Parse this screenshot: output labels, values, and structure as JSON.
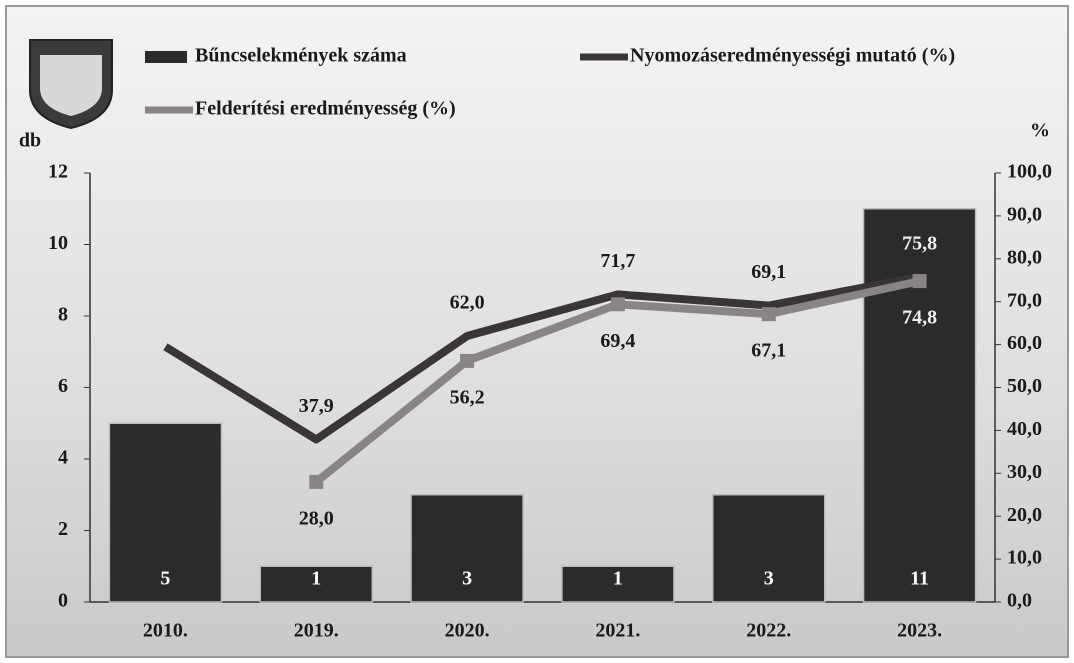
{
  "chart_data": {
    "type": "combo",
    "ylabel": "db",
    "y2label": "%",
    "categories": [
      "2010.",
      "2019.",
      "2020.",
      "2021.",
      "2022.",
      "2023."
    ],
    "series": [
      {
        "name": "Bűncselekmények száma",
        "type": "bar",
        "color": "#2b2b2b",
        "values": [
          5,
          1,
          3,
          1,
          3,
          11
        ]
      },
      {
        "name": "Nyomozáseredményességi mutató (%)",
        "type": "line",
        "axis": "y2",
        "color": "#3a3636",
        "values": [
          59.5,
          37.9,
          62.0,
          71.7,
          69.1,
          75.8
        ],
        "value_labels": [
          null,
          "37,9",
          "62,0",
          "71,7",
          "69,1",
          "75,8"
        ]
      },
      {
        "name": "Felderítési eredményesség (%)",
        "type": "line",
        "axis": "y2",
        "color": "#8a8585",
        "values": [
          null,
          28.0,
          56.2,
          69.4,
          67.1,
          74.8
        ],
        "value_labels": [
          null,
          "28,0",
          "56,2",
          "69,4",
          "67,1",
          "74,8"
        ]
      }
    ],
    "ylim": [
      0,
      12
    ],
    "yticks": [
      0,
      2,
      4,
      6,
      8,
      10,
      12
    ],
    "y2lim": [
      0,
      100
    ],
    "y2ticks": [
      {
        "value": 0,
        "label": "0,0"
      },
      {
        "value": 10,
        "label": "10,0"
      },
      {
        "value": 20,
        "label": "20,0"
      },
      {
        "value": 30,
        "label": "30,0"
      },
      {
        "value": 40,
        "label": "40,0"
      },
      {
        "value": 50,
        "label": "50,0"
      },
      {
        "value": 60,
        "label": "60,0"
      },
      {
        "value": 70,
        "label": "70,0"
      },
      {
        "value": 80,
        "label": "80,0"
      },
      {
        "value": 90,
        "label": "90,0"
      },
      {
        "value": 100,
        "label": "100,0"
      }
    ]
  }
}
